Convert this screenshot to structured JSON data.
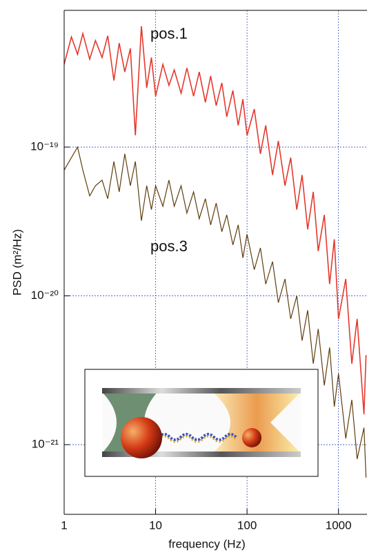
{
  "chart_data": {
    "type": "line",
    "xlabel": "frequency (Hz)",
    "ylabel": "PSD (m²/Hz)",
    "xscale": "log",
    "yscale": "log",
    "grid": true,
    "xlim": [
      1,
      2050
    ],
    "ylim": [
      3.4e-22,
      8.3e-19
    ],
    "xticks": [
      1,
      10,
      100,
      1000
    ],
    "yticks": [
      {
        "value": 1e-21,
        "label": "10⁻²¹"
      },
      {
        "value": 1e-20,
        "label": "10⁻²⁰"
      },
      {
        "value": 1e-19,
        "label": "10⁻¹⁹"
      }
    ],
    "annotations": [
      "pos.1",
      "pos.3"
    ],
    "x": [
      1,
      1.2,
      1.4,
      1.6,
      1.9,
      2.2,
      2.6,
      3,
      3.5,
      4,
      4.6,
      5.3,
      6,
      7,
      8,
      9,
      10,
      12,
      14,
      16,
      19,
      22,
      26,
      30,
      35,
      40,
      46,
      53,
      60,
      70,
      80,
      90,
      100,
      120,
      140,
      160,
      190,
      220,
      260,
      300,
      350,
      400,
      460,
      530,
      600,
      700,
      800,
      900,
      1000,
      1200,
      1400,
      1600,
      1900,
      2000
    ],
    "series": [
      {
        "color": "#e5372b",
        "values": [
          3.6e-19,
          5.5e-19,
          4.2e-19,
          5.8e-19,
          3.9e-19,
          5.2e-19,
          4e-19,
          5.6e-19,
          2.8e-19,
          5e-19,
          3.2e-19,
          4.6e-19,
          1.2e-19,
          6.5e-19,
          2.5e-19,
          4e-19,
          2.2e-19,
          3.6e-19,
          2.6e-19,
          3.3e-19,
          2.3e-19,
          3.4e-19,
          2.2e-19,
          3.2e-19,
          2e-19,
          3e-19,
          1.9e-19,
          2.7e-19,
          1.6e-19,
          2.4e-19,
          1.4e-19,
          2.1e-19,
          1.2e-19,
          1.8e-19,
          9e-20,
          1.4e-19,
          6.5e-20,
          1.1e-19,
          5.5e-20,
          8.5e-20,
          3.8e-20,
          6.5e-20,
          2.8e-20,
          5e-20,
          2e-20,
          3.5e-20,
          1.2e-20,
          2.4e-20,
          7e-21,
          1.3e-20,
          3.5e-21,
          7e-21,
          1.6e-21,
          4e-21
        ]
      },
      {
        "color": "#5e3c0c",
        "values": [
          7e-20,
          8.5e-20,
          1e-19,
          7e-20,
          4.7e-20,
          5.5e-20,
          6e-20,
          4.5e-20,
          8e-20,
          5e-20,
          9e-20,
          5.5e-20,
          8e-20,
          3.2e-20,
          5.5e-20,
          3.8e-20,
          5.5e-20,
          4e-20,
          6e-20,
          4e-20,
          5.5e-20,
          3.6e-20,
          5e-20,
          3.3e-20,
          4.5e-20,
          3e-20,
          4.2e-20,
          2.7e-20,
          3.5e-20,
          2.2e-20,
          3e-20,
          1.8e-20,
          2.6e-20,
          1.5e-20,
          2.1e-20,
          1.2e-20,
          1.7e-20,
          9e-21,
          1.3e-20,
          7e-21,
          1e-20,
          5e-21,
          8e-21,
          3.5e-21,
          6e-21,
          2.5e-21,
          4.5e-21,
          1.8e-21,
          3e-21,
          1.1e-21,
          2e-21,
          8e-22,
          1.3e-21,
          6e-22
        ]
      }
    ]
  }
}
